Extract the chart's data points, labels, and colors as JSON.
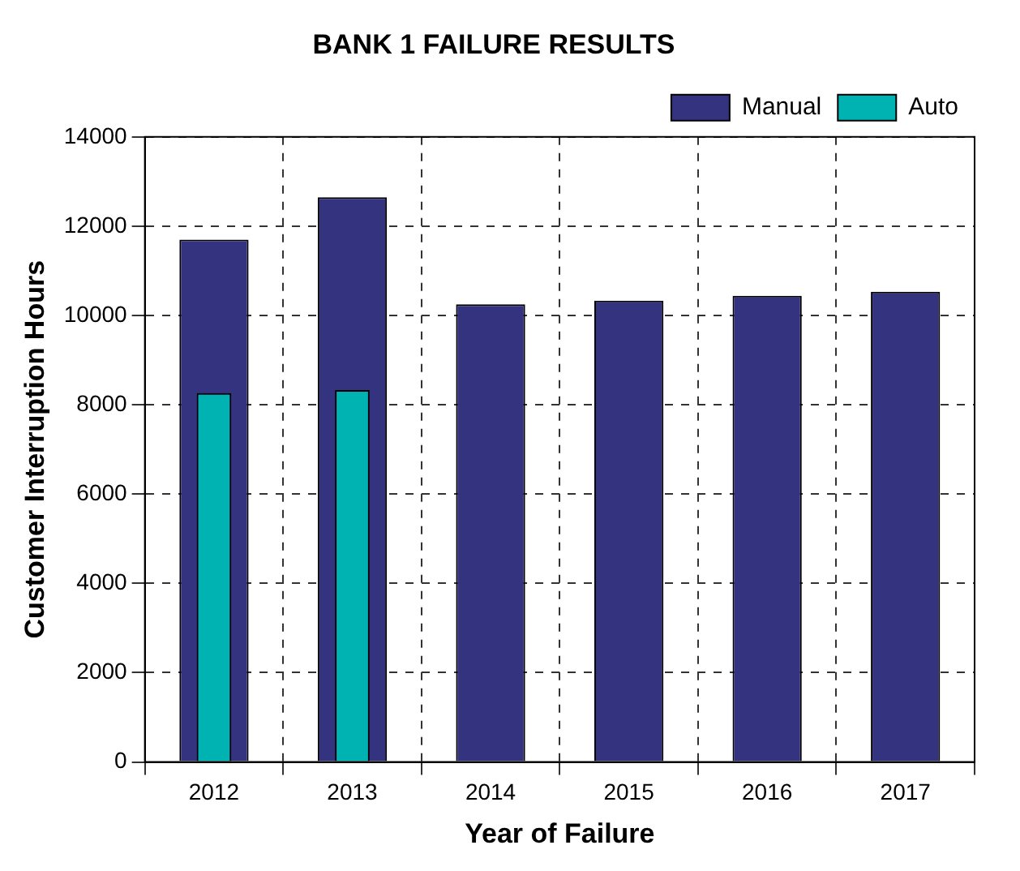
{
  "chart_data": {
    "type": "bar",
    "title": "BANK 1 FAILURE RESULTS",
    "xlabel": "Year of Failure",
    "ylabel": "Customer Interruption Hours",
    "categories": [
      "2012",
      "2013",
      "2014",
      "2015",
      "2016",
      "2017"
    ],
    "series": [
      {
        "name": "Manual",
        "color": "#333380",
        "values": [
          11700,
          12650,
          10250,
          10330,
          10440,
          10530
        ]
      },
      {
        "name": "Auto",
        "color": "#00b3b3",
        "values": [
          8260,
          8330,
          null,
          null,
          null,
          null
        ]
      }
    ],
    "ylim": [
      0,
      14000
    ],
    "yticks": [
      0,
      2000,
      4000,
      6000,
      8000,
      10000,
      12000,
      14000
    ],
    "grid": true,
    "legend": "top right"
  }
}
